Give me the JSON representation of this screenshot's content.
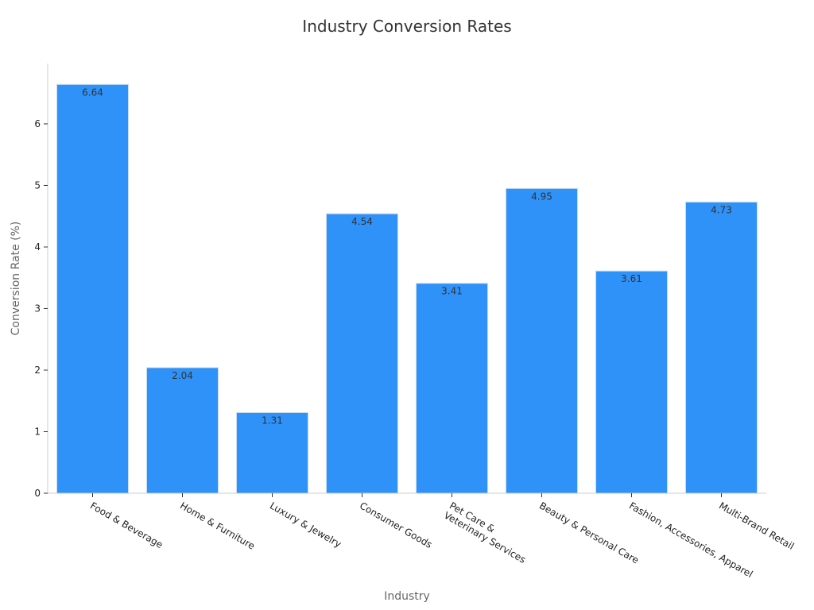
{
  "chart_data": {
    "type": "bar",
    "title": "Industry Conversion Rates",
    "xlabel": "Industry",
    "ylabel": "Conversion Rate (%)",
    "categories": [
      "Food & Beverage",
      "Home & Furniture",
      "Luxury & Jewelry",
      "Consumer Goods",
      "Pet Care &\nVeterinary Services",
      "Beauty & Personal Care",
      "Fashion, Accessories, Apparel",
      "Multi-Brand Retail"
    ],
    "values": [
      6.64,
      2.04,
      1.31,
      4.54,
      3.41,
      4.95,
      3.61,
      4.73
    ],
    "value_labels": [
      "6.64",
      "2.04",
      "1.31",
      "4.54",
      "3.41",
      "4.95",
      "3.61",
      "4.73"
    ],
    "yticks": [
      0,
      1,
      2,
      3,
      4,
      5,
      6
    ],
    "ylim": [
      0,
      6.98
    ],
    "grid": false,
    "legend": "none",
    "bar_color": "#2f92f8"
  }
}
